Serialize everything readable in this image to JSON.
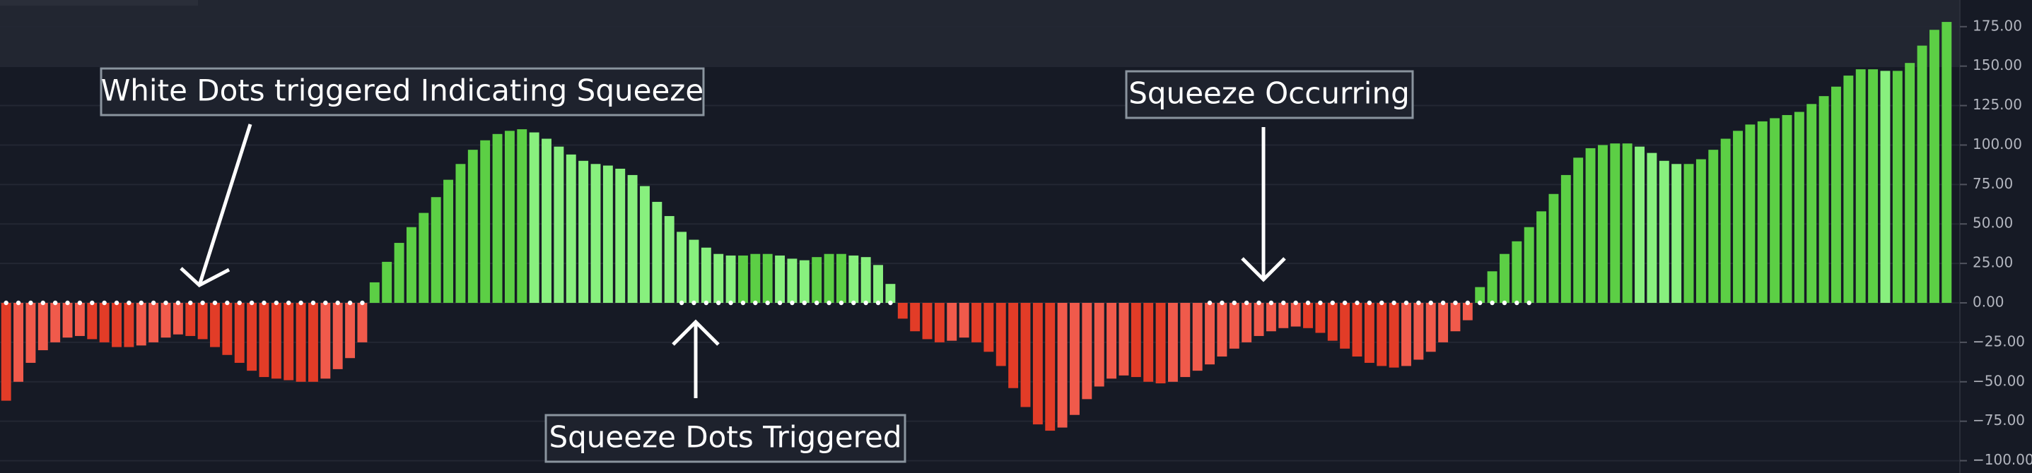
{
  "chart_data": {
    "type": "bar",
    "annotations": [
      {
        "text": "White Dots triggered Indicating Squeeze"
      },
      {
        "text": "Squeeze Occurring"
      },
      {
        "text": "Squeeze Dots Triggered"
      }
    ],
    "ylim": [
      -107.8,
      191.9
    ],
    "yticks": [
      {
        "value": -100,
        "label": "−100.00"
      },
      {
        "value": -75,
        "label": "−75.00"
      },
      {
        "value": -50,
        "label": "−50.00"
      },
      {
        "value": -25,
        "label": "−25.00"
      },
      {
        "value": 0,
        "label": "0.00"
      },
      {
        "value": 25,
        "label": "25.00"
      },
      {
        "value": 50,
        "label": "50.00"
      },
      {
        "value": 75,
        "label": "75.00"
      },
      {
        "value": 100,
        "label": "100.00"
      },
      {
        "value": 125,
        "label": "125.00"
      },
      {
        "value": 150,
        "label": "150.00"
      },
      {
        "value": 175,
        "label": "175.00"
      }
    ],
    "grid": true,
    "colors": {
      "positive_rising": "#5ccf45",
      "positive_falling": "#88f07e",
      "negative_falling": "#e23c27",
      "negative_rising": "#f05a4b"
    },
    "series": [
      {
        "values": [
          -62,
          -50,
          -38,
          -30,
          -25,
          -22,
          -21,
          -23,
          -25,
          -28,
          -28,
          -27,
          -25,
          -22,
          -20,
          -21,
          -23,
          -28,
          -33,
          -38,
          -43,
          -47,
          -48,
          -49,
          -50,
          -50,
          -48,
          -42,
          -35,
          -25,
          13,
          26,
          38,
          48,
          57,
          67,
          78,
          88,
          97,
          103,
          107,
          109,
          110,
          108,
          104,
          99,
          94,
          90,
          88,
          87,
          85,
          81,
          74,
          64,
          55,
          45,
          40,
          35,
          31,
          30,
          30,
          31,
          31,
          30,
          28,
          27,
          29,
          31,
          31,
          30,
          29,
          24,
          12,
          -10,
          -18,
          -23,
          -25,
          -24,
          -22,
          -25,
          -31,
          -40,
          -54,
          -66,
          -77,
          -81,
          -79,
          -71,
          -61,
          -53,
          -48,
          -46,
          -47,
          -50,
          -51,
          -50,
          -47,
          -43,
          -39,
          -34,
          -29,
          -25,
          -21,
          -18,
          -16,
          -15,
          -16,
          -19,
          -24,
          -29,
          -34,
          -38,
          -40,
          -41,
          -40,
          -36,
          -31,
          -25,
          -18,
          -11,
          10,
          20,
          31,
          39,
          48,
          58,
          69,
          81,
          92,
          98,
          100,
          101,
          101,
          99,
          95,
          90,
          88,
          88,
          91,
          97,
          104,
          109,
          113,
          115,
          117,
          119,
          121,
          126,
          131,
          137,
          144,
          148,
          148,
          147,
          147,
          152,
          163,
          173,
          178
        ]
      },
      {
        "marker": "dot",
        "color": "#ffffff",
        "values": [
          0,
          0,
          0,
          0,
          0,
          0,
          0,
          0,
          0,
          0,
          0,
          0,
          0,
          0,
          0,
          0,
          0,
          0,
          0,
          0,
          0,
          0,
          0,
          0,
          0,
          0,
          0,
          0,
          0,
          0,
          null,
          null,
          null,
          null,
          null,
          null,
          null,
          null,
          null,
          null,
          null,
          null,
          null,
          null,
          null,
          null,
          null,
          null,
          null,
          null,
          null,
          null,
          null,
          null,
          null,
          0,
          0,
          0,
          0,
          0,
          0,
          0,
          0,
          0,
          0,
          0,
          0,
          0,
          0,
          0,
          0,
          0,
          0,
          null,
          null,
          null,
          null,
          null,
          null,
          null,
          null,
          null,
          null,
          null,
          null,
          null,
          null,
          null,
          null,
          null,
          null,
          null,
          null,
          null,
          null,
          null,
          null,
          null,
          0,
          0,
          0,
          0,
          0,
          0,
          0,
          0,
          0,
          0,
          0,
          0,
          0,
          0,
          0,
          0,
          0,
          0,
          0,
          0,
          0,
          0,
          0,
          0,
          0,
          0,
          0,
          null,
          null,
          null,
          null,
          null,
          null,
          null,
          null,
          null,
          null,
          null,
          null,
          null,
          null,
          null,
          null,
          null,
          null,
          null,
          null,
          null,
          null,
          null,
          null,
          null,
          null,
          null,
          null,
          null,
          null,
          null,
          null,
          null,
          null
        ]
      }
    ]
  }
}
